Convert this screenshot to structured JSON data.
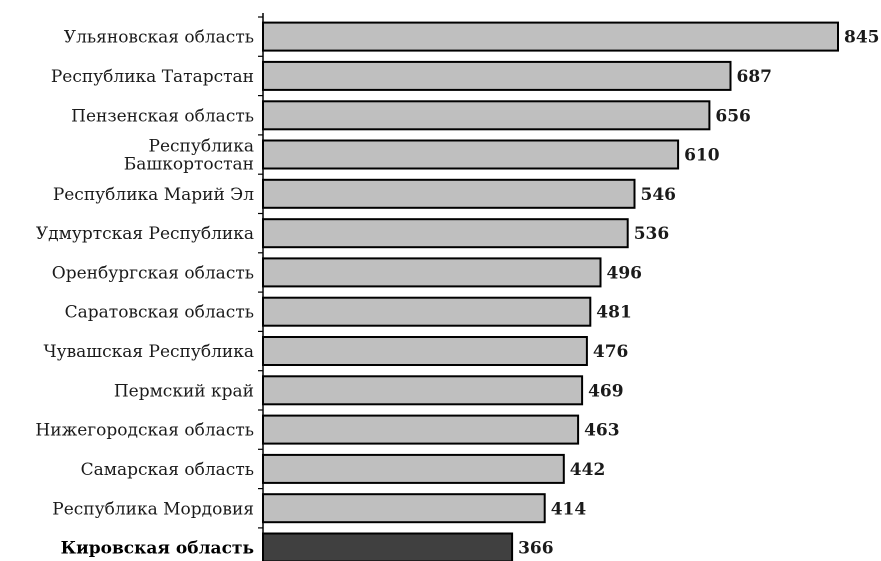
{
  "chart_data": {
    "type": "bar",
    "orientation": "horizontal",
    "categories": [
      [
        "Ульяновская область"
      ],
      [
        "Республика Татарстан"
      ],
      [
        "Пензенская область"
      ],
      [
        "Республика",
        "Башкортостан"
      ],
      [
        "Республика Марий Эл"
      ],
      [
        "Удмуртская Республика"
      ],
      [
        "Оренбургская область"
      ],
      [
        "Саратовская область"
      ],
      [
        "Чувашская Республика"
      ],
      [
        "Пермский край"
      ],
      [
        "Нижегородская область"
      ],
      [
        "Самарская область"
      ],
      [
        "Республика Мордовия"
      ],
      [
        "Кировская область"
      ]
    ],
    "values": [
      845,
      687,
      656,
      610,
      546,
      536,
      496,
      481,
      476,
      469,
      463,
      442,
      414,
      366
    ],
    "highlight_index": 13,
    "xlim": [
      0,
      845
    ],
    "title": "",
    "xlabel": "",
    "ylabel": "",
    "grid": false,
    "data_labels": true,
    "colors": {
      "bar": "#bfbfbf",
      "bar_highlight": "#404040",
      "bar_stroke": "#000000",
      "axis": "#000000"
    }
  }
}
